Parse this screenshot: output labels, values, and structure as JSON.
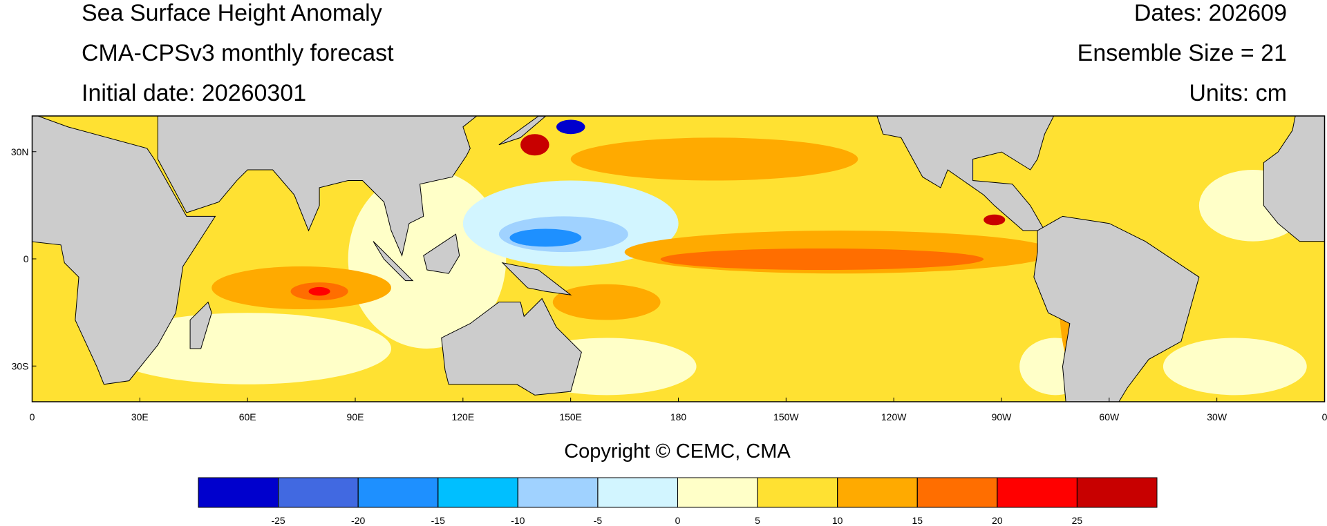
{
  "header": {
    "title": "Sea Surface Height Anomaly",
    "subtitle": "CMA-CPSv3 monthly forecast",
    "initial_date": "Initial date: 20260301",
    "dates": "Dates: 202609",
    "ensemble": "Ensemble Size = 21",
    "units": "Units: cm"
  },
  "map": {
    "xlim": [
      0,
      360
    ],
    "ylim": [
      -40,
      40
    ],
    "xticks": [
      0,
      {
        "value": 30,
        "label": "30E"
      },
      {
        "value": 60,
        "label": "60E"
      },
      {
        "value": 90,
        "label": "90E"
      },
      {
        "value": 120,
        "label": "120E"
      },
      {
        "value": 150,
        "label": "150E"
      },
      180,
      {
        "value": 210,
        "label": "150W"
      },
      {
        "value": 240,
        "label": "120W"
      },
      {
        "value": 270,
        "label": "90W"
      },
      {
        "value": 300,
        "label": "60W"
      },
      {
        "value": 330,
        "label": "30W"
      },
      {
        "value": 360,
        "label": "0"
      }
    ],
    "yticks": [
      {
        "value": 30,
        "label": "30N"
      },
      0,
      {
        "value": -30,
        "label": "30S"
      }
    ]
  },
  "copyright": "Copyright © CEMC, CMA",
  "colorbar": {
    "lim": [
      -30,
      30
    ],
    "ticks": [
      -25,
      -20,
      -15,
      -10,
      -5,
      0,
      5,
      10,
      15,
      20,
      25
    ],
    "colors": [
      "#0000cd",
      "#4169e1",
      "#1e90ff",
      "#00bfff",
      "#a0d2ff",
      "#d2f5ff",
      "#ffffc8",
      "#ffe132",
      "#ffaa00",
      "#ff6e00",
      "#ff0000",
      "#c80000"
    ]
  }
}
